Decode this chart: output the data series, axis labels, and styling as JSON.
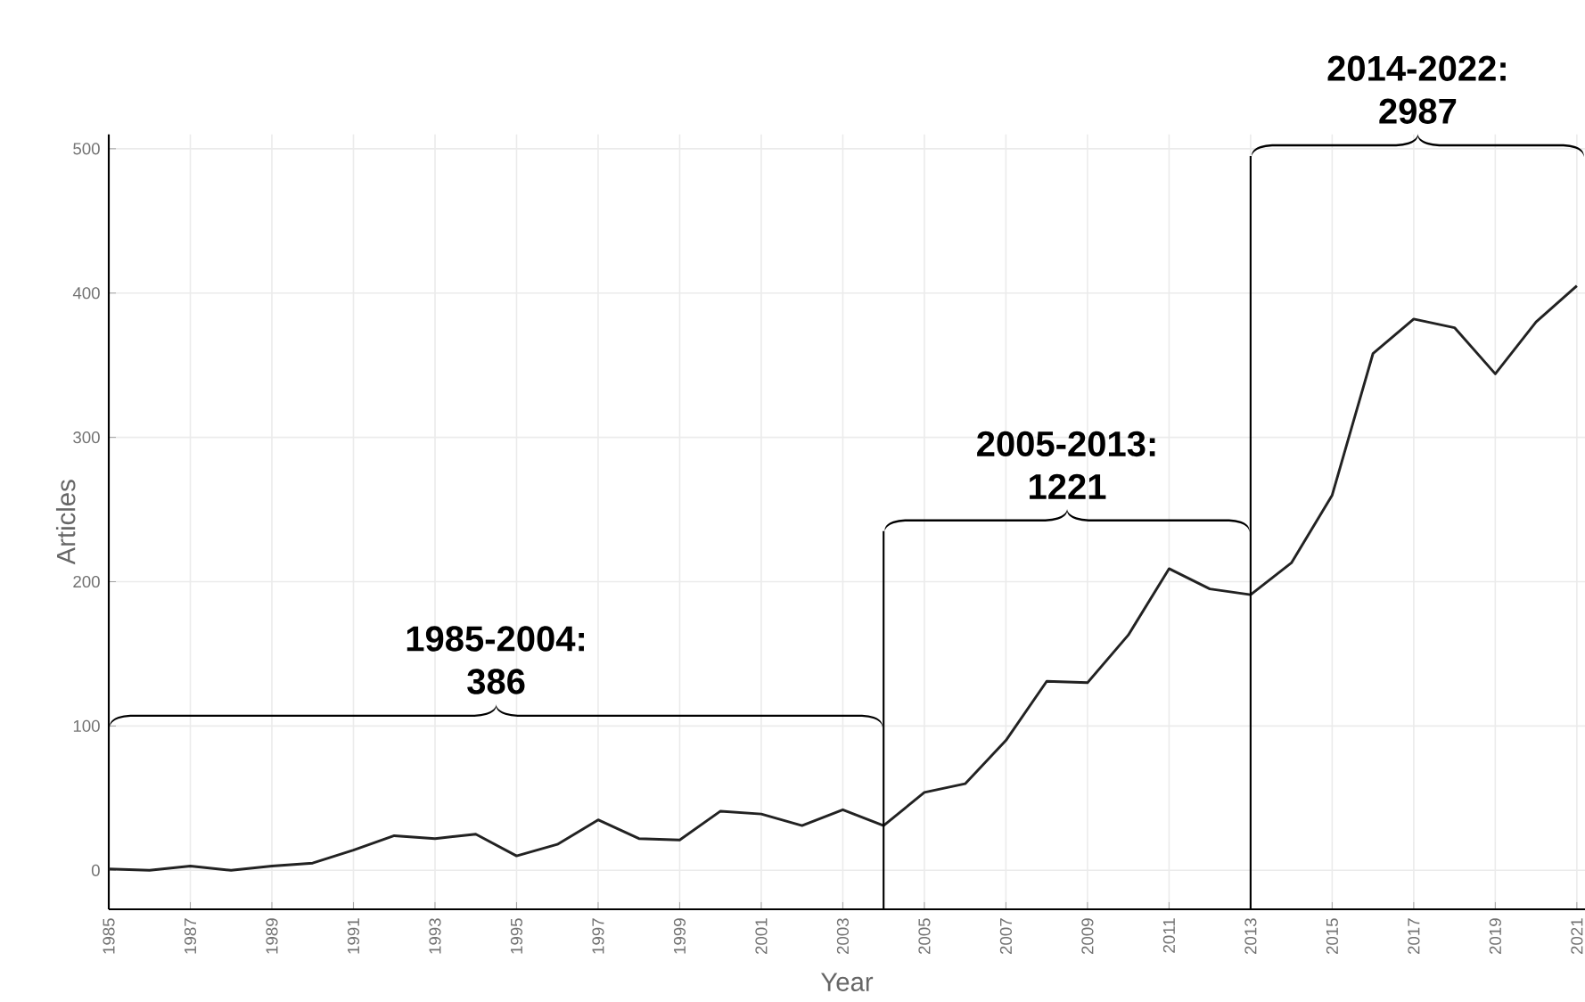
{
  "chart_data": {
    "type": "line",
    "xlabel": "Year",
    "ylabel": "Articles",
    "x": [
      1985,
      1986,
      1987,
      1988,
      1989,
      1990,
      1991,
      1992,
      1993,
      1994,
      1995,
      1996,
      1997,
      1998,
      1999,
      2000,
      2001,
      2002,
      2003,
      2004,
      2005,
      2006,
      2007,
      2008,
      2009,
      2010,
      2011,
      2012,
      2013,
      2014,
      2015,
      2016,
      2017,
      2018,
      2019,
      2020,
      2021
    ],
    "series": [
      {
        "color": "#222222",
        "values": [
          1,
          0,
          3,
          0,
          3,
          5,
          14,
          24,
          22,
          25,
          10,
          18,
          35,
          22,
          21,
          41,
          39,
          31,
          42,
          31,
          54,
          60,
          90,
          131,
          130,
          163,
          209,
          195,
          191,
          213,
          260,
          358,
          382,
          376,
          344,
          380,
          405
        ]
      }
    ],
    "xlim": [
      1985,
      2021.2
    ],
    "ylim": [
      -27,
      510
    ],
    "xticks": [
      1985,
      1987,
      1989,
      1991,
      1993,
      1995,
      1997,
      1999,
      2001,
      2003,
      2005,
      2007,
      2009,
      2011,
      2013,
      2015,
      2017,
      2019,
      2021
    ],
    "yticks": [
      0,
      100,
      200,
      300,
      400,
      500
    ],
    "grid": true,
    "marker": "none",
    "line_style": "solid",
    "ref_lines": [
      {
        "axis": "x",
        "value": 2004,
        "color": "#000000"
      },
      {
        "axis": "x",
        "value": 2013,
        "color": "#000000"
      }
    ],
    "annotations": [
      "1985-2004: 386",
      "2005-2013: 1221",
      "2014-2022: 2987"
    ]
  }
}
